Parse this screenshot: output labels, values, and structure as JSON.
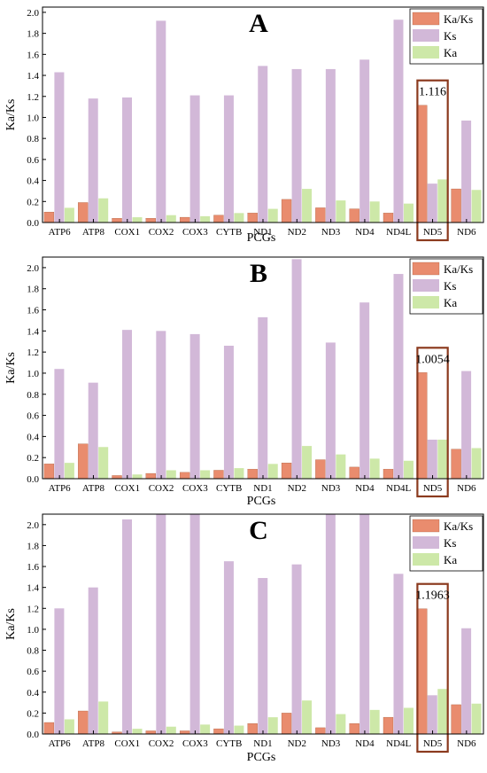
{
  "chart_data": [
    {
      "type": "bar",
      "title": "A",
      "xlabel": "PCGs",
      "ylabel": "Ka/Ks",
      "ylim": [
        0,
        2.05
      ],
      "yticks": [
        "0.0",
        "0.2",
        "0.4",
        "0.6",
        "0.8",
        "1.0",
        "1.2",
        "1.4",
        "1.6",
        "1.8",
        "2.0"
      ],
      "grid": false,
      "legend_position": "top-right",
      "categories": [
        "ATP6",
        "ATP8",
        "COX1",
        "COX2",
        "COX3",
        "CYTB",
        "ND1",
        "ND2",
        "ND3",
        "ND4",
        "ND4L",
        "ND5",
        "ND6"
      ],
      "series": [
        {
          "name": "Ka/Ks",
          "color": "#e98c6e",
          "values": [
            0.1,
            0.19,
            0.04,
            0.04,
            0.05,
            0.07,
            0.09,
            0.22,
            0.14,
            0.13,
            0.09,
            1.116,
            0.32
          ]
        },
        {
          "name": "Ks",
          "color": "#d2b8d8",
          "values": [
            1.43,
            1.18,
            1.19,
            1.92,
            1.21,
            1.21,
            1.49,
            1.46,
            1.46,
            1.55,
            1.93,
            0.37,
            0.97
          ]
        },
        {
          "name": "Ka",
          "color": "#cde8a8",
          "values": [
            0.14,
            0.23,
            0.05,
            0.07,
            0.06,
            0.09,
            0.13,
            0.32,
            0.21,
            0.2,
            0.18,
            0.41,
            0.31
          ]
        }
      ],
      "annotation": {
        "category": "ND5",
        "text": "1.116"
      }
    },
    {
      "type": "bar",
      "title": "B",
      "xlabel": "PCGs",
      "ylabel": "Ka/Ks",
      "ylim": [
        0,
        2.1
      ],
      "yticks": [
        "0.0",
        "0.2",
        "0.4",
        "0.6",
        "0.8",
        "1.0",
        "1.2",
        "1.4",
        "1.6",
        "1.8",
        "2.0"
      ],
      "grid": false,
      "legend_position": "top-right",
      "categories": [
        "ATP6",
        "ATP8",
        "COX1",
        "COX2",
        "COX3",
        "CYTB",
        "ND1",
        "ND2",
        "ND3",
        "ND4",
        "ND4L",
        "ND5",
        "ND6"
      ],
      "series": [
        {
          "name": "Ka/Ks",
          "color": "#e98c6e",
          "values": [
            0.14,
            0.33,
            0.03,
            0.05,
            0.06,
            0.08,
            0.09,
            0.15,
            0.18,
            0.11,
            0.09,
            1.0054,
            0.28
          ]
        },
        {
          "name": "Ks",
          "color": "#d2b8d8",
          "values": [
            1.04,
            0.91,
            1.41,
            1.4,
            1.37,
            1.26,
            1.53,
            2.08,
            1.29,
            1.67,
            1.94,
            0.37,
            1.02
          ]
        },
        {
          "name": "Ka",
          "color": "#cde8a8",
          "values": [
            0.15,
            0.3,
            0.04,
            0.08,
            0.08,
            0.1,
            0.14,
            0.31,
            0.23,
            0.19,
            0.17,
            0.37,
            0.29
          ]
        }
      ],
      "annotation": {
        "category": "ND5",
        "text": "1.0054"
      }
    },
    {
      "type": "bar",
      "title": "C",
      "xlabel": "PCGs",
      "ylabel": "Ka/Ks",
      "ylim": [
        0,
        2.1
      ],
      "yticks": [
        "0.0",
        "0.2",
        "0.4",
        "0.6",
        "0.8",
        "1.0",
        "1.2",
        "1.4",
        "1.6",
        "1.8",
        "2.0"
      ],
      "grid": false,
      "legend_position": "top-right",
      "categories": [
        "ATP6",
        "ATP8",
        "COX1",
        "COX2",
        "COX3",
        "CYTB",
        "ND1",
        "ND2",
        "ND3",
        "ND4",
        "ND4L",
        "ND5",
        "ND6"
      ],
      "series": [
        {
          "name": "Ka/Ks",
          "color": "#e98c6e",
          "values": [
            0.11,
            0.22,
            0.02,
            0.03,
            0.03,
            0.05,
            0.1,
            0.2,
            0.06,
            0.1,
            0.16,
            1.1963,
            0.28
          ]
        },
        {
          "name": "Ks",
          "color": "#d2b8d8",
          "values": [
            1.2,
            1.4,
            2.05,
            2.1,
            2.1,
            1.65,
            1.49,
            1.62,
            2.1,
            2.1,
            1.53,
            0.37,
            1.01
          ]
        },
        {
          "name": "Ka",
          "color": "#cde8a8",
          "values": [
            0.14,
            0.31,
            0.05,
            0.07,
            0.09,
            0.08,
            0.16,
            0.32,
            0.19,
            0.23,
            0.25,
            0.43,
            0.29
          ]
        }
      ],
      "annotation": {
        "category": "ND5",
        "text": "1.1963"
      }
    }
  ]
}
